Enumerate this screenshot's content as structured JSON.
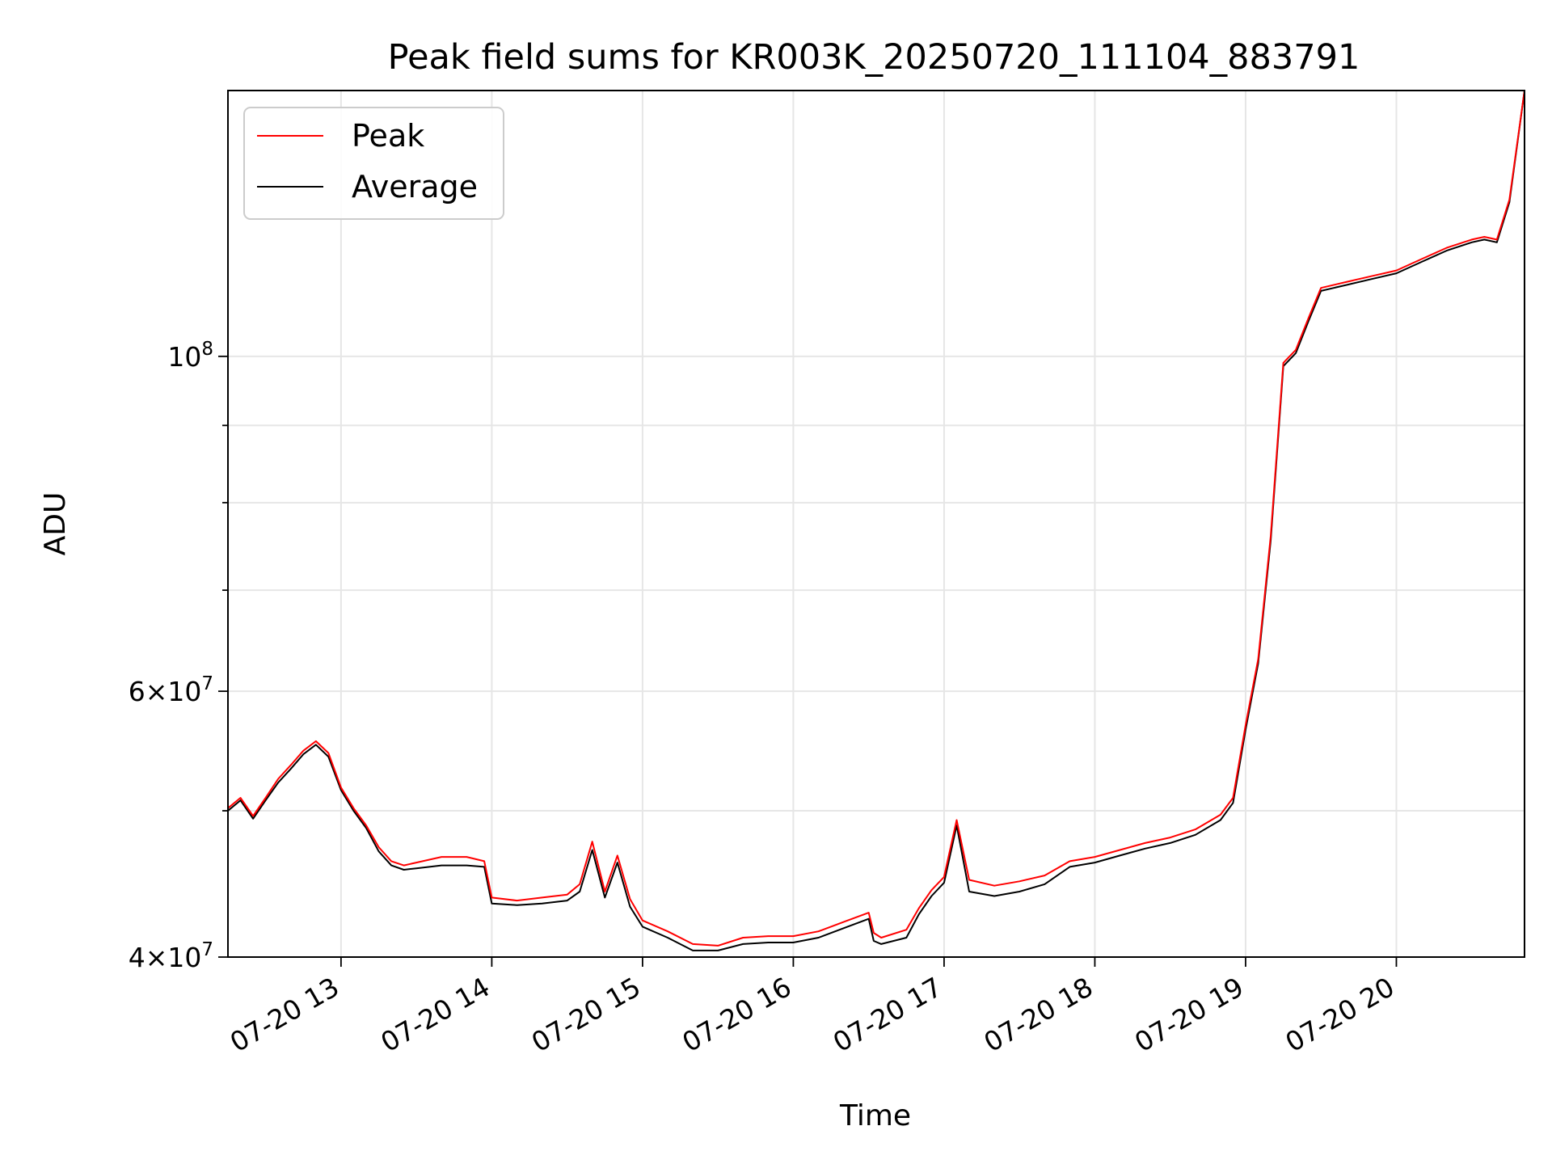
{
  "chart_data": {
    "type": "line",
    "title": "Peak field sums for KR003K_20250720_111104_883791",
    "xlabel": "Time",
    "ylabel": "ADU",
    "x_range": [
      "07-20 12:15",
      "07-20 20:51"
    ],
    "ylim": [
      40000000,
      150000000
    ],
    "yscale": "log",
    "grid": true,
    "legend_position": "upper-left",
    "x_tick_labels": [
      "07-20 13",
      "07-20 14",
      "07-20 15",
      "07-20 16",
      "07-20 17",
      "07-20 18",
      "07-20 19",
      "07-20 20"
    ],
    "y_tick_labels": [
      {
        "value": 40000000,
        "mantissa": "4",
        "exponent": "7"
      },
      {
        "value": 60000000,
        "mantissa": "6",
        "exponent": "7"
      },
      {
        "value": 100000000,
        "mantissa": "",
        "exponent": "8"
      }
    ],
    "series": [
      {
        "name": "Peak",
        "color": "#ff0000",
        "x": [
          "12:15",
          "12:20",
          "12:25",
          "12:30",
          "12:35",
          "12:40",
          "12:45",
          "12:50",
          "12:55",
          "13:00",
          "13:05",
          "13:10",
          "13:15",
          "13:20",
          "13:25",
          "13:30",
          "13:40",
          "13:50",
          "13:57",
          "14:00",
          "14:10",
          "14:20",
          "14:30",
          "14:35",
          "14:40",
          "14:45",
          "14:50",
          "14:55",
          "15:00",
          "15:10",
          "15:20",
          "15:30",
          "15:40",
          "15:50",
          "16:00",
          "16:10",
          "16:20",
          "16:30",
          "16:32",
          "16:35",
          "16:45",
          "16:50",
          "16:55",
          "17:00",
          "17:05",
          "17:10",
          "17:20",
          "17:30",
          "17:40",
          "17:50",
          "18:00",
          "18:10",
          "18:20",
          "18:30",
          "18:40",
          "18:50",
          "18:55",
          "19:00",
          "19:05",
          "19:10",
          "19:15",
          "19:20",
          "19:25",
          "19:30",
          "19:40",
          "19:50",
          "20:00",
          "20:10",
          "20:20",
          "20:30",
          "20:35",
          "20:40",
          "20:45",
          "20:51"
        ],
        "y": [
          50200000,
          51000000,
          49600000,
          51000000,
          52500000,
          53600000,
          54800000,
          55600000,
          54600000,
          51800000,
          50200000,
          48900000,
          47300000,
          46300000,
          46000000,
          46200000,
          46600000,
          46600000,
          46300000,
          43800000,
          43600000,
          43800000,
          44000000,
          44700000,
          47700000,
          44200000,
          46700000,
          43700000,
          42300000,
          41600000,
          40800000,
          40700000,
          41200000,
          41300000,
          41300000,
          41600000,
          42200000,
          42800000,
          41500000,
          41200000,
          41700000,
          43100000,
          44300000,
          45200000,
          49300000,
          45000000,
          44600000,
          44900000,
          45300000,
          46300000,
          46600000,
          47100000,
          47600000,
          48000000,
          48600000,
          49700000,
          51000000,
          57000000,
          63000000,
          76000000,
          99000000,
          101000000,
          106000000,
          111000000,
          112000000,
          113000000,
          114000000,
          116000000,
          118000000,
          119500000,
          120000000,
          119500000,
          127000000,
          150000000
        ]
      },
      {
        "name": "Average",
        "color": "#000000",
        "x": [
          "12:15",
          "12:20",
          "12:25",
          "12:30",
          "12:35",
          "12:40",
          "12:45",
          "12:50",
          "12:55",
          "13:00",
          "13:05",
          "13:10",
          "13:15",
          "13:20",
          "13:25",
          "13:30",
          "13:40",
          "13:50",
          "13:57",
          "14:00",
          "14:10",
          "14:20",
          "14:30",
          "14:35",
          "14:40",
          "14:45",
          "14:50",
          "14:55",
          "15:00",
          "15:10",
          "15:20",
          "15:30",
          "15:40",
          "15:50",
          "16:00",
          "16:10",
          "16:20",
          "16:30",
          "16:32",
          "16:35",
          "16:45",
          "16:50",
          "16:55",
          "17:00",
          "17:05",
          "17:10",
          "17:20",
          "17:30",
          "17:40",
          "17:50",
          "18:00",
          "18:10",
          "18:20",
          "18:30",
          "18:40",
          "18:50",
          "18:55",
          "19:00",
          "19:05",
          "19:10",
          "19:15",
          "19:20",
          "19:25",
          "19:30",
          "19:40",
          "19:50",
          "20:00",
          "20:10",
          "20:20",
          "20:30",
          "20:35",
          "20:40",
          "20:45",
          "20:51"
        ],
        "y": [
          50000000,
          50800000,
          49400000,
          50800000,
          52200000,
          53300000,
          54500000,
          55300000,
          54300000,
          51600000,
          50000000,
          48700000,
          47000000,
          46000000,
          45700000,
          45800000,
          46000000,
          46000000,
          45900000,
          43400000,
          43300000,
          43400000,
          43600000,
          44200000,
          47100000,
          43800000,
          46200000,
          43200000,
          41900000,
          41200000,
          40400000,
          40400000,
          40800000,
          40900000,
          40900000,
          41200000,
          41800000,
          42400000,
          41000000,
          40800000,
          41200000,
          42700000,
          43900000,
          44800000,
          48900000,
          44200000,
          43900000,
          44200000,
          44700000,
          45900000,
          46200000,
          46700000,
          47200000,
          47600000,
          48200000,
          49300000,
          50600000,
          56600000,
          62600000,
          75500000,
          98500000,
          100500000,
          105500000,
          110500000,
          111500000,
          112500000,
          113500000,
          115500000,
          117500000,
          119000000,
          119500000,
          119000000,
          126500000,
          150000000
        ]
      }
    ]
  }
}
